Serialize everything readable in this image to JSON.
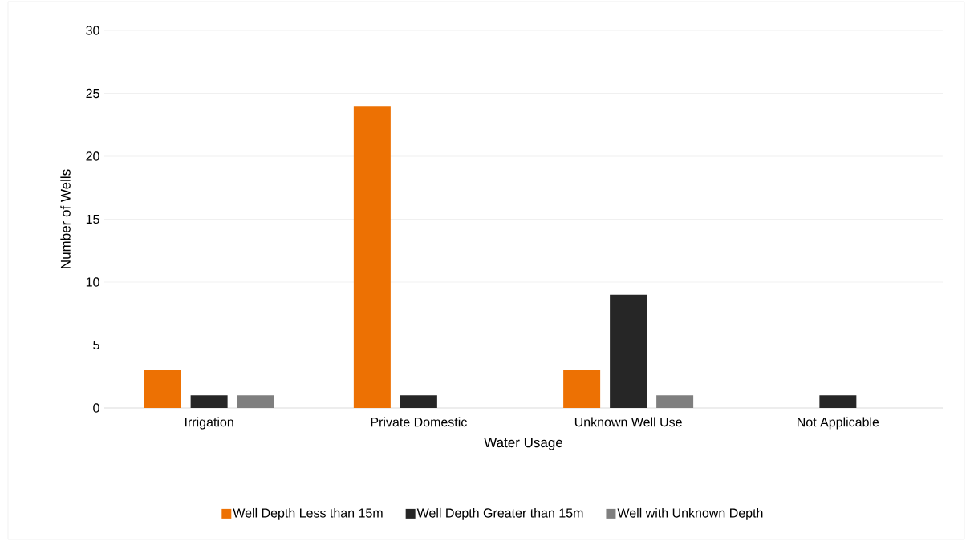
{
  "chart_data": {
    "type": "bar",
    "xlabel": "Water Usage",
    "ylabel": "Number of Wells",
    "categories": [
      "Irrigation",
      "Private Domestic",
      "Unknown Well Use",
      "Not Applicable"
    ],
    "series": [
      {
        "name": "Well Depth Less than 15m",
        "color": "#ed7103",
        "values": [
          3,
          24,
          3,
          null
        ]
      },
      {
        "name": "Well Depth Greater than 15m",
        "color": "#262626",
        "values": [
          1,
          1,
          9,
          1
        ]
      },
      {
        "name": "Well with Unknown Depth",
        "color": "#7f7f7f",
        "values": [
          1,
          null,
          1,
          null
        ]
      }
    ],
    "ylim": [
      0,
      30
    ],
    "yticks": [
      0,
      5,
      10,
      15,
      20,
      25,
      30
    ],
    "grid": "y",
    "legend": "bottom"
  }
}
